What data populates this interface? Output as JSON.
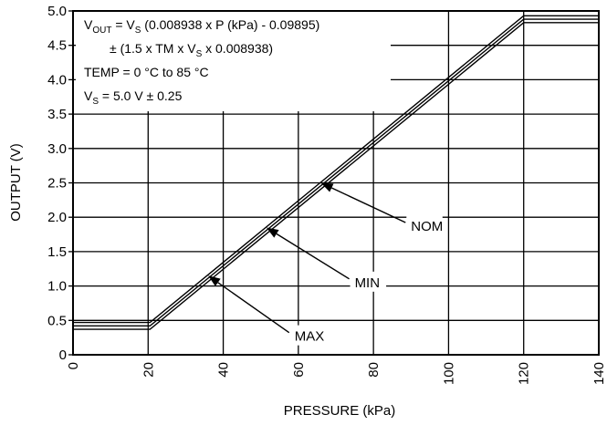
{
  "chart_data": {
    "type": "line",
    "xlabel": "PRESSURE (kPa)",
    "ylabel": "OUTPUT (V)",
    "xlim": [
      0,
      140
    ],
    "ylim": [
      0,
      5.0
    ],
    "x_ticks": [
      0,
      20,
      40,
      60,
      80,
      100,
      120,
      140
    ],
    "y_ticks": [
      0,
      0.5,
      1.0,
      1.5,
      2.0,
      2.5,
      3.0,
      3.5,
      4.0,
      4.5,
      5.0
    ],
    "x_tick_labels": [
      "0",
      "20",
      "40",
      "60",
      "80",
      "100",
      "120",
      "140"
    ],
    "y_tick_labels": [
      "0",
      "0.5",
      "1.0",
      "1.5",
      "2.0",
      "2.5",
      "3.0",
      "3.5",
      "4.0",
      "4.5",
      "5.0"
    ],
    "grid": true,
    "series": [
      {
        "name": "MAX",
        "x": [
          0,
          20.5,
          120,
          140
        ],
        "y": [
          0.47,
          0.47,
          4.93,
          4.93
        ]
      },
      {
        "name": "NOM",
        "x": [
          0,
          20.5,
          120,
          140
        ],
        "y": [
          0.42,
          0.42,
          4.88,
          4.88
        ]
      },
      {
        "name": "MIN",
        "x": [
          0,
          20.5,
          120,
          140
        ],
        "y": [
          0.37,
          0.37,
          4.83,
          4.83
        ]
      }
    ],
    "annotations": [
      {
        "label": "NOM",
        "text_x": 90,
        "text_y": 1.87,
        "arrow_to_x": 66,
        "arrow_to_y": 2.5
      },
      {
        "label": "MIN",
        "text_x": 75,
        "text_y": 1.05,
        "arrow_to_x": 51.5,
        "arrow_to_y": 1.85
      },
      {
        "label": "MAX",
        "text_x": 59,
        "text_y": 0.27,
        "arrow_to_x": 36,
        "arrow_to_y": 1.15
      }
    ],
    "info_box": {
      "line1": {
        "v": "V",
        "out_sub": "OUT",
        "eq": " = V",
        "s_sub": "S",
        "rest": " (0.008938 x P (kPa) - 0.09895)"
      },
      "line2": {
        "prefix": "± (1.5 x TM x V",
        "s_sub": "S",
        "rest": " x 0.008938)"
      },
      "line3": "TEMP = 0 °C to 85 °C",
      "line4": {
        "v": "V",
        "s_sub": "S",
        "rest": " = 5.0 V ± 0.25"
      }
    }
  }
}
